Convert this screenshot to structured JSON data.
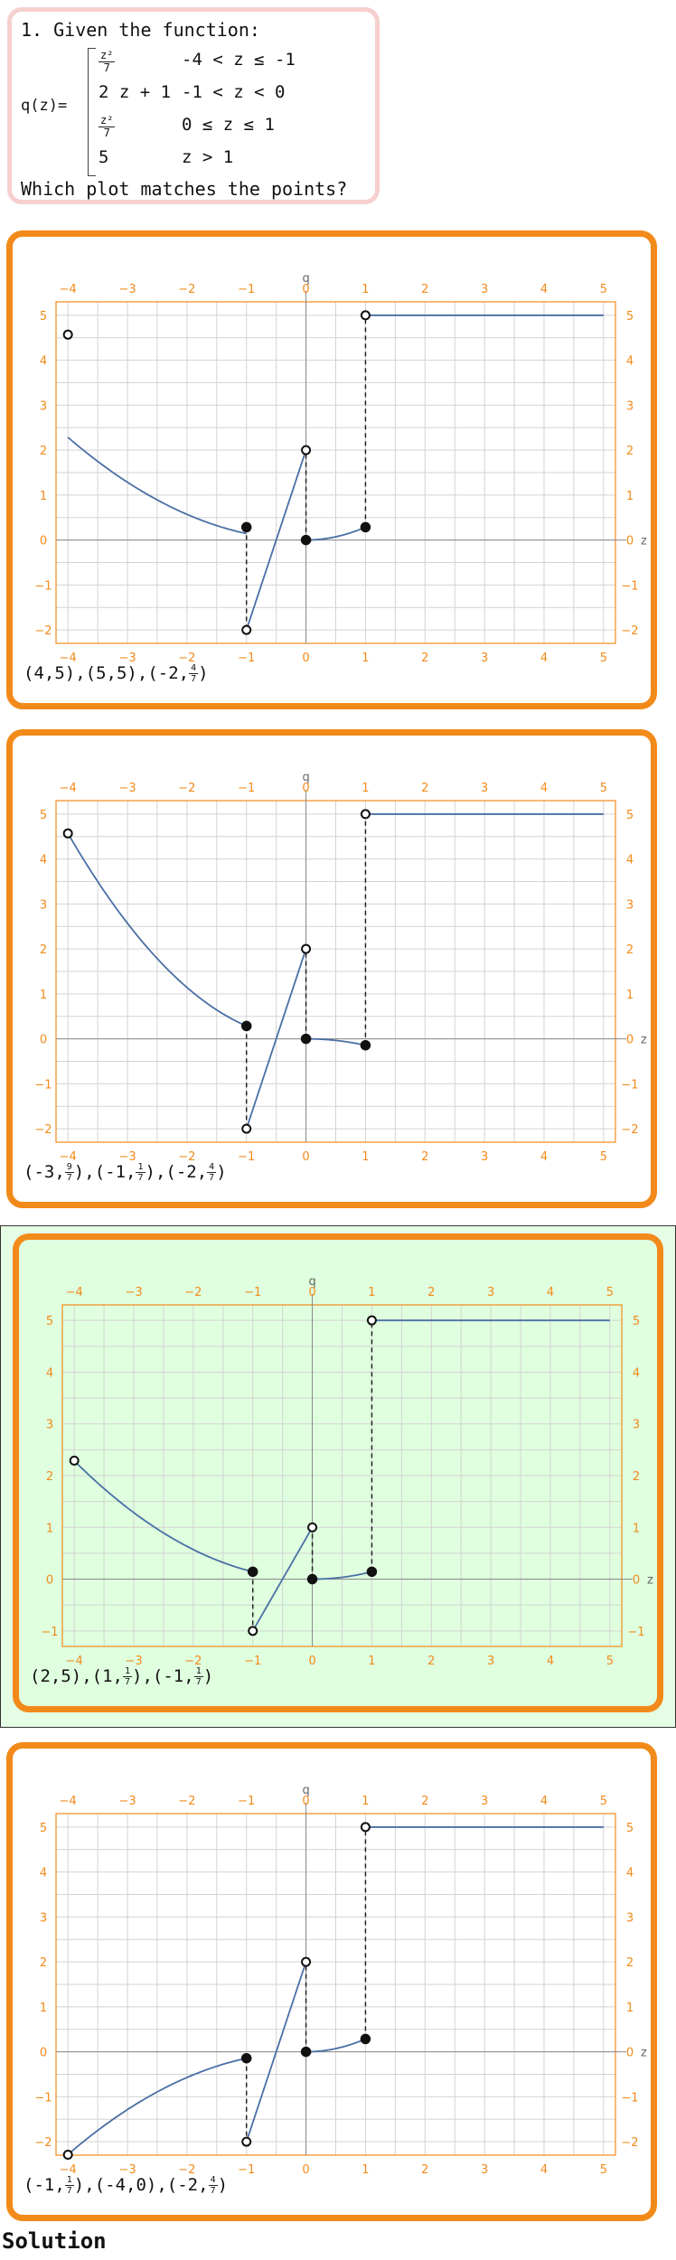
{
  "question": {
    "intro": "1. Given the function:",
    "lhs": "q(z)=",
    "pieces": [
      {
        "expr_frac": [
          "z²",
          "7"
        ],
        "cond": "-4 < z ≤ -1"
      },
      {
        "expr": "2 z + 1",
        "cond": "-1 < z < 0"
      },
      {
        "expr_frac": [
          "z²",
          "7"
        ],
        "cond": "0 ≤ z ≤ 1"
      },
      {
        "expr": "5",
        "cond": "z > 1"
      }
    ],
    "ask": "Which plot matches the points?"
  },
  "colors": {
    "orange": "#f28a1a",
    "curve": "#4a6fa5",
    "correct_bg": "#dfffdf",
    "question_border": "#f6cfcf"
  },
  "axis_labels": {
    "x": "z",
    "y": "q"
  },
  "x_ticks": [
    -4,
    -3,
    -2,
    -1,
    0,
    1,
    2,
    3,
    4,
    5
  ],
  "options": [
    {
      "points_text": [
        [
          "(4,5)"
        ],
        [
          "(5,5)"
        ],
        [
          "(-2,",
          "4",
          "7",
          ")"
        ]
      ],
      "ylim": [
        -2.3,
        5.3
      ],
      "y_ticks": [
        -2,
        -1,
        0,
        1,
        2,
        3,
        4,
        5
      ],
      "curves": [
        {
          "type": "poly",
          "a": 0.142857,
          "b": 0,
          "c": 0,
          "from": -4,
          "to": -1
        },
        {
          "type": "poly",
          "a": 0,
          "b": 4,
          "c": 2,
          "from": -1,
          "to": 0
        },
        {
          "type": "poly",
          "a": 0.285714,
          "b": 0,
          "c": 0,
          "from": 0,
          "to": 1
        },
        {
          "type": "poly",
          "a": 0,
          "b": 0,
          "c": 5,
          "from": 1,
          "to": 5
        }
      ],
      "dashes": [
        [
          -1,
          0.2857,
          -2
        ],
        [
          0,
          0,
          2
        ],
        [
          1,
          0.2857,
          5
        ]
      ],
      "open_points": [
        [
          -4,
          4.57
        ],
        [
          -1,
          -2
        ],
        [
          0,
          2
        ],
        [
          1,
          5
        ]
      ],
      "closed_points": [
        [
          -1,
          0.2857
        ],
        [
          0,
          0
        ],
        [
          1,
          0.2857
        ]
      ],
      "correct": false
    },
    {
      "points_text": [
        [
          "(-3,",
          "9",
          "7",
          ")"
        ],
        [
          "(-1,",
          "1",
          "7",
          ")"
        ],
        [
          "(-2,",
          "4",
          "7",
          ")"
        ]
      ],
      "ylim": [
        -2.3,
        5.3
      ],
      "y_ticks": [
        -2,
        -1,
        0,
        1,
        2,
        3,
        4,
        5
      ],
      "curves": [
        {
          "type": "poly",
          "a": 0.285714,
          "b": 0,
          "c": 0,
          "from": -4,
          "to": -1
        },
        {
          "type": "poly",
          "a": 0,
          "b": 4,
          "c": 2,
          "from": -1,
          "to": 0
        },
        {
          "type": "poly",
          "a": -0.142857,
          "b": 0,
          "c": 0,
          "from": 0,
          "to": 1
        },
        {
          "type": "poly",
          "a": 0,
          "b": 0,
          "c": 5,
          "from": 1,
          "to": 5
        }
      ],
      "dashes": [
        [
          -1,
          0.2857,
          -2
        ],
        [
          0,
          0,
          2
        ],
        [
          1,
          -0.1429,
          5
        ]
      ],
      "open_points": [
        [
          -4,
          4.57
        ],
        [
          -1,
          -2
        ],
        [
          0,
          2
        ],
        [
          1,
          5
        ]
      ],
      "closed_points": [
        [
          -1,
          0.2857
        ],
        [
          0,
          0
        ],
        [
          1,
          -0.1429
        ]
      ],
      "correct": false
    },
    {
      "points_text": [
        [
          "(2,5)"
        ],
        [
          "(1,",
          "1",
          "7",
          ")"
        ],
        [
          "(-1,",
          "1",
          "7",
          ")"
        ]
      ],
      "ylim": [
        -1.3,
        5.3
      ],
      "y_ticks": [
        -1,
        0,
        1,
        2,
        3,
        4,
        5
      ],
      "curves": [
        {
          "type": "poly",
          "a": 0.142857,
          "b": 0,
          "c": 0,
          "from": -4,
          "to": -1
        },
        {
          "type": "poly",
          "a": 0,
          "b": 2,
          "c": 1,
          "from": -1,
          "to": 0
        },
        {
          "type": "poly",
          "a": 0.142857,
          "b": 0,
          "c": 0,
          "from": 0,
          "to": 1
        },
        {
          "type": "poly",
          "a": 0,
          "b": 0,
          "c": 5,
          "from": 1,
          "to": 5
        }
      ],
      "dashes": [
        [
          -1,
          0.1429,
          -1
        ],
        [
          0,
          0,
          1
        ],
        [
          1,
          0.1429,
          5
        ]
      ],
      "open_points": [
        [
          -4,
          2.29
        ],
        [
          -1,
          -1
        ],
        [
          0,
          1
        ],
        [
          1,
          5
        ]
      ],
      "closed_points": [
        [
          -1,
          0.1429
        ],
        [
          0,
          0
        ],
        [
          1,
          0.1429
        ]
      ],
      "correct": true
    },
    {
      "points_text": [
        [
          "(-1,",
          "1",
          "7",
          ")"
        ],
        [
          "(-4,0)"
        ],
        [
          "(-2,",
          "4",
          "7",
          ")"
        ]
      ],
      "ylim": [
        -2.3,
        5.3
      ],
      "y_ticks": [
        -2,
        -1,
        0,
        1,
        2,
        3,
        4,
        5
      ],
      "curves": [
        {
          "type": "poly",
          "a": -0.142857,
          "b": 0,
          "c": 0,
          "from": -4,
          "to": -1
        },
        {
          "type": "poly",
          "a": 0,
          "b": 4,
          "c": 2,
          "from": -1,
          "to": 0
        },
        {
          "type": "poly",
          "a": 0.285714,
          "b": 0,
          "c": 0,
          "from": 0,
          "to": 1
        },
        {
          "type": "poly",
          "a": 0,
          "b": 0,
          "c": 5,
          "from": 1,
          "to": 5
        }
      ],
      "dashes": [
        [
          -1,
          -0.1429,
          -2
        ],
        [
          0,
          0,
          2
        ],
        [
          1,
          0.2857,
          5
        ]
      ],
      "open_points": [
        [
          -4,
          -2.29
        ],
        [
          -1,
          -2
        ],
        [
          0,
          2
        ],
        [
          1,
          5
        ]
      ],
      "closed_points": [
        [
          -1,
          -0.1429
        ],
        [
          0,
          0
        ],
        [
          1,
          0.2857
        ]
      ],
      "correct": false
    }
  ],
  "solution_label": "Solution"
}
